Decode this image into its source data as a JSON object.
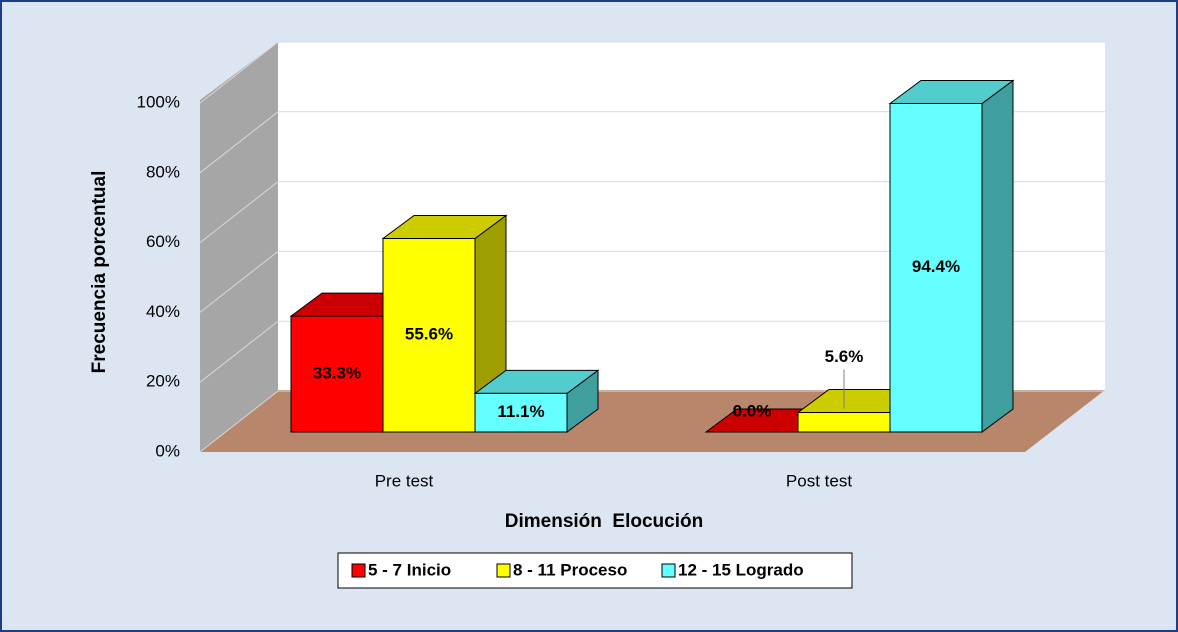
{
  "chart_data": {
    "type": "bar3d",
    "categories": [
      "Pre test",
      "Post test"
    ],
    "series": [
      {
        "name": "5 - 7 Inicio",
        "color": "#ff0000",
        "values": [
          33.3,
          0.0
        ],
        "value_labels": [
          "33.3%",
          "0.0%"
        ]
      },
      {
        "name": "8 - 11 Proceso",
        "color": "#ffff00",
        "values": [
          55.6,
          5.6
        ],
        "value_labels": [
          "55.6%",
          "5.6%"
        ]
      },
      {
        "name": "12 - 15 Logrado",
        "color": "#66ffff",
        "values": [
          11.1,
          94.4
        ],
        "value_labels": [
          "11.1%",
          "94.4%"
        ]
      }
    ],
    "xlabel": "Dimensión  Elocución",
    "ylabel": "Frecuencia porcentual",
    "ylim": [
      0,
      100
    ],
    "yticks": [
      {
        "value": 0,
        "label": "0%"
      },
      {
        "value": 20,
        "label": "20%"
      },
      {
        "value": 40,
        "label": "40%"
      },
      {
        "value": 60,
        "label": "60%"
      },
      {
        "value": 80,
        "label": "80%"
      },
      {
        "value": 100,
        "label": "100%"
      }
    ],
    "grid": true,
    "legend": "bottom"
  }
}
